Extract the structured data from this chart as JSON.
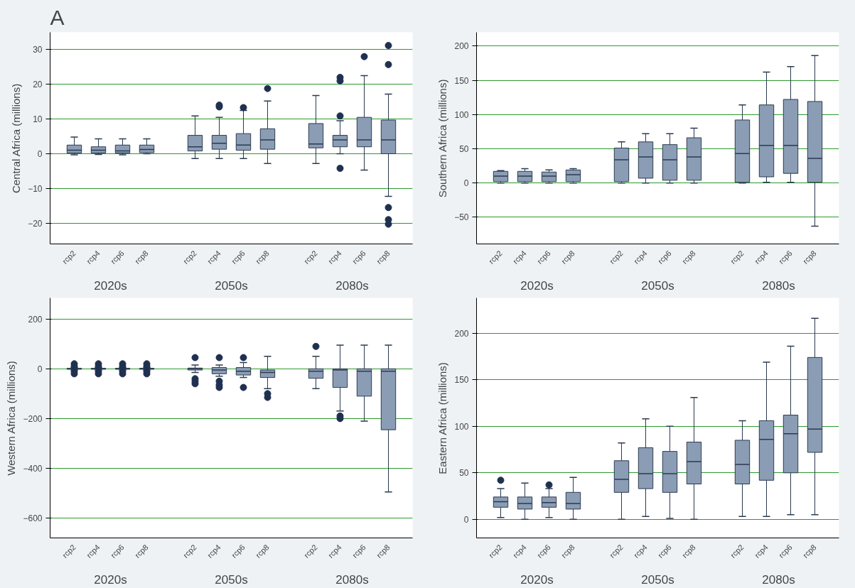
{
  "chart_data": [
    {
      "type": "box",
      "title": "A",
      "ylabel": "Central Africa (millions)",
      "categories": [
        "rcp2",
        "rcp4",
        "rcp6",
        "rcp8",
        "rcp2",
        "rcp4",
        "rcp6",
        "rcp8",
        "rcp2",
        "rcp4",
        "rcp6",
        "rcp8"
      ],
      "annotations": [
        "2020s",
        "2050s",
        "2080s"
      ],
      "ylim": [
        -26,
        35
      ],
      "yticks": [
        -20,
        -10,
        0,
        10,
        20,
        30
      ],
      "grid": "y",
      "series": [
        {
          "color": "#8a9db5",
          "boxes": [
            {
              "low": -0.3,
              "q1": 0.2,
              "median": 1,
              "q3": 2.5,
              "high": 4.8
            },
            {
              "low": -0.2,
              "q1": 0.2,
              "median": 1,
              "q3": 2,
              "high": 4.3
            },
            {
              "low": -0.3,
              "q1": 0.2,
              "median": 0.8,
              "q3": 2.5,
              "high": 4.3
            },
            {
              "low": 0,
              "q1": 0.3,
              "median": 1.2,
              "q3": 2.5,
              "high": 4.3
            },
            {
              "low": -1.4,
              "q1": 0.8,
              "median": 2,
              "q3": 5.3,
              "high": 10.9
            },
            {
              "low": -1.4,
              "q1": 1.3,
              "median": 3,
              "q3": 5.3,
              "high": 10.5,
              "outliers": [
                13.5,
                14
              ]
            },
            {
              "low": -1.4,
              "q1": 1,
              "median": 2.5,
              "q3": 5.8,
              "high": 12.5,
              "outliers": [
                13.3
              ]
            },
            {
              "low": -2.8,
              "q1": 1.3,
              "median": 4,
              "q3": 7.2,
              "high": 15.2,
              "outliers": [
                18.8
              ]
            },
            {
              "low": -2.8,
              "q1": 1.7,
              "median": 2.8,
              "q3": 8.7,
              "high": 16.8
            },
            {
              "low": 0,
              "q1": 2,
              "median": 4,
              "q3": 5.3,
              "high": 9.5,
              "outliers": [
                21,
                22,
                10.9,
                -4.2
              ]
            },
            {
              "low": -4.7,
              "q1": 2,
              "median": 4,
              "q3": 10.5,
              "high": 22.5,
              "outliers": [
                28
              ]
            },
            {
              "low": -12.3,
              "q1": 0,
              "median": 4,
              "q3": 9.7,
              "high": 17.2,
              "outliers": [
                31.2,
                25.7,
                -15.5,
                -19,
                -20.3
              ]
            }
          ]
        }
      ]
    },
    {
      "type": "box",
      "ylabel": "Southern Africa (millions)",
      "categories": [
        "rcp2",
        "rcp4",
        "rcp6",
        "rcp8",
        "rcp2",
        "rcp4",
        "rcp6",
        "rcp8",
        "rcp2",
        "rcp4",
        "rcp6",
        "rcp8"
      ],
      "annotations": [
        "2020s",
        "2050s",
        "2080s"
      ],
      "ylim": [
        -89,
        220
      ],
      "yticks": [
        -50,
        0,
        50,
        100,
        150,
        200
      ],
      "grid": "y",
      "series": [
        {
          "color": "#8a9db5",
          "boxes": [
            {
              "low": 0,
              "q1": 2,
              "median": 10,
              "q3": 17,
              "high": 18
            },
            {
              "low": 0,
              "q1": 2,
              "median": 10,
              "q3": 17,
              "high": 21
            },
            {
              "low": 0,
              "q1": 2,
              "median": 10,
              "q3": 16,
              "high": 19
            },
            {
              "low": 0,
              "q1": 2,
              "median": 12,
              "q3": 19,
              "high": 21
            },
            {
              "low": 0,
              "q1": 2,
              "median": 34,
              "q3": 51,
              "high": 60
            },
            {
              "low": 0,
              "q1": 7,
              "median": 38,
              "q3": 60,
              "high": 72
            },
            {
              "low": 0,
              "q1": 4,
              "median": 34,
              "q3": 56,
              "high": 72
            },
            {
              "low": 0,
              "q1": 4,
              "median": 38,
              "q3": 66,
              "high": 80
            },
            {
              "low": 0,
              "q1": 1,
              "median": 43,
              "q3": 92,
              "high": 114
            },
            {
              "low": 1,
              "q1": 9,
              "median": 55,
              "q3": 114,
              "high": 162
            },
            {
              "low": 1,
              "q1": 14,
              "median": 55,
              "q3": 122,
              "high": 170
            },
            {
              "low": -63,
              "q1": 1,
              "median": 36,
              "q3": 119,
              "high": 186
            }
          ]
        }
      ]
    },
    {
      "type": "box",
      "ylabel": "Western Africa (millions)",
      "categories": [
        "rcp2",
        "rcp4",
        "rcp6",
        "rcp8",
        "rcp2",
        "rcp4",
        "rcp6",
        "rcp8",
        "rcp2",
        "rcp4",
        "rcp6",
        "rcp8"
      ],
      "annotations": [
        "2020s",
        "2050s",
        "2080s"
      ],
      "ylim": [
        -680,
        285
      ],
      "yticks": [
        -600,
        -400,
        -200,
        0,
        200
      ],
      "grid": "y",
      "series": [
        {
          "color": "#8a9db5",
          "boxes": [
            {
              "low": -5,
              "q1": -2,
              "median": 0,
              "q3": 2,
              "high": 5,
              "outliers": [
                20,
                10,
                -10,
                -20
              ]
            },
            {
              "low": -5,
              "q1": -2,
              "median": 0,
              "q3": 2,
              "high": 5,
              "outliers": [
                20,
                10,
                -10,
                -20
              ]
            },
            {
              "low": -5,
              "q1": -2,
              "median": 0,
              "q3": 2,
              "high": 5,
              "outliers": [
                20,
                10,
                -10,
                -20
              ]
            },
            {
              "low": -5,
              "q1": -2,
              "median": 0,
              "q3": 2,
              "high": 5,
              "outliers": [
                20,
                10,
                -10,
                -20
              ]
            },
            {
              "low": -15,
              "q1": -5,
              "median": 0,
              "q3": 3,
              "high": 15,
              "outliers": [
                45,
                -40,
                -50,
                -60
              ]
            },
            {
              "low": -30,
              "q1": -20,
              "median": -5,
              "q3": 5,
              "high": 15,
              "outliers": [
                45,
                -50,
                -65,
                -75
              ]
            },
            {
              "low": -35,
              "q1": -25,
              "median": -10,
              "q3": 5,
              "high": 25,
              "outliers": [
                45,
                -75
              ]
            },
            {
              "low": -80,
              "q1": -35,
              "median": -15,
              "q3": -5,
              "high": 50,
              "outliers": [
                -100,
                -115
              ]
            },
            {
              "low": -80,
              "q1": -38,
              "median": -10,
              "q3": 0,
              "high": 50,
              "outliers": [
                90
              ]
            },
            {
              "low": -170,
              "q1": -75,
              "median": -5,
              "q3": 0,
              "high": 95,
              "outliers": [
                -190,
                -200
              ]
            },
            {
              "low": -210,
              "q1": -110,
              "median": -10,
              "q3": 0,
              "high": 95
            },
            {
              "low": -495,
              "q1": -245,
              "median": -10,
              "q3": 0,
              "high": 95
            }
          ]
        }
      ]
    },
    {
      "type": "box",
      "ylabel": "Eastern Africa (millions)",
      "categories": [
        "rcp2",
        "rcp4",
        "rcp6",
        "rcp8",
        "rcp2",
        "rcp4",
        "rcp6",
        "rcp8",
        "rcp2",
        "rcp4",
        "rcp6",
        "rcp8"
      ],
      "annotations": [
        "2020s",
        "2050s",
        "2080s"
      ],
      "ylim": [
        -20,
        238
      ],
      "yticks": [
        0,
        50,
        100,
        150,
        200
      ],
      "grid": "y",
      "series": [
        {
          "color": "#8a9db5",
          "boxes": [
            {
              "low": 2,
              "q1": 13,
              "median": 19,
              "q3": 24,
              "high": 33,
              "outliers": [
                42
              ]
            },
            {
              "low": 0,
              "q1": 11,
              "median": 17,
              "q3": 24,
              "high": 39
            },
            {
              "low": 2,
              "q1": 13,
              "median": 18,
              "q3": 24,
              "high": 33,
              "outliers": [
                37
              ]
            },
            {
              "low": 0,
              "q1": 11,
              "median": 17,
              "q3": 29,
              "high": 45
            },
            {
              "low": 0,
              "q1": 29,
              "median": 43,
              "q3": 63,
              "high": 82
            },
            {
              "low": 3,
              "q1": 33,
              "median": 49,
              "q3": 77,
              "high": 108
            },
            {
              "low": 1,
              "q1": 29,
              "median": 49,
              "q3": 73,
              "high": 100
            },
            {
              "low": 0,
              "q1": 38,
              "median": 62,
              "q3": 83,
              "high": 131
            },
            {
              "low": 3,
              "q1": 38,
              "median": 59,
              "q3": 85,
              "high": 106
            },
            {
              "low": 3,
              "q1": 42,
              "median": 86,
              "q3": 106,
              "high": 169
            },
            {
              "low": 5,
              "q1": 50,
              "median": 92,
              "q3": 112,
              "high": 186
            },
            {
              "low": 5,
              "q1": 72,
              "median": 97,
              "q3": 174,
              "high": 216
            }
          ]
        }
      ]
    }
  ]
}
